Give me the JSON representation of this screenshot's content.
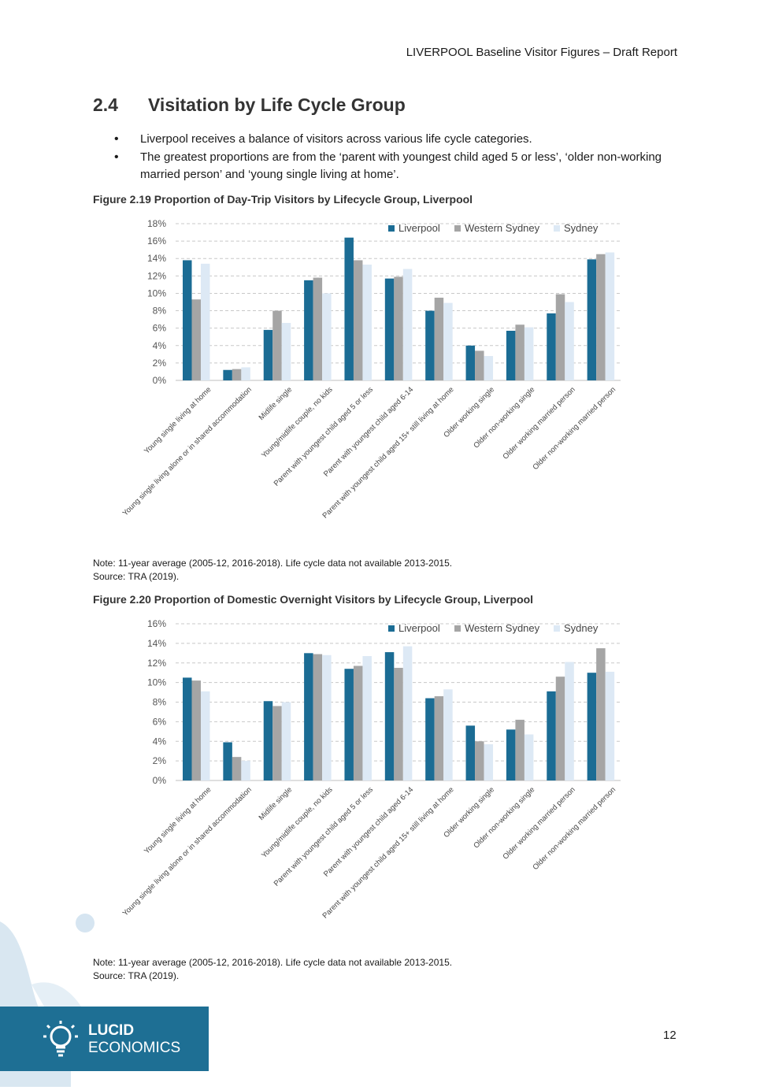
{
  "header": "LIVERPOOL Baseline Visitor Figures – Draft Report",
  "section": {
    "number": "2.4",
    "title": "Visitation by Life Cycle Group"
  },
  "bullets": [
    "Liverpool receives a balance of visitors across various life cycle categories.",
    "The greatest proportions are from the ‘parent with youngest child aged 5 or less’, ‘older non-working married person’ and ‘young single living at home’."
  ],
  "colors": {
    "liverpool": "#1b6c94",
    "western_sydney": "#a5a5a5",
    "sydney": "#dde9f5"
  },
  "figures": [
    {
      "title": "Figure 2.19 Proportion of Day-Trip Visitors by Lifecycle Group, Liverpool",
      "note": "Note: 11-year average (2005-12, 2016-2018). Life cycle data not available 2013-2015.",
      "source": "Source: TRA (2019)."
    },
    {
      "title": "Figure 2.20 Proportion of Domestic Overnight Visitors by Lifecycle Group, Liverpool",
      "note": "Note: 11-year average (2005-12, 2016-2018). Life cycle data not available 2013-2015.",
      "source": "Source: TRA (2019)."
    }
  ],
  "chart_data": [
    {
      "type": "bar",
      "title": "",
      "xlabel": "",
      "ylabel": "",
      "ylim": [
        0,
        18
      ],
      "yticks": [
        "0%",
        "2%",
        "4%",
        "6%",
        "8%",
        "10%",
        "12%",
        "14%",
        "16%",
        "18%"
      ],
      "categories": [
        "Young single living at home",
        "Young single living alone or in shared accommodation",
        "Midlife single",
        "Young/midlife couple, no kids",
        "Parent with youngest child aged 5 or less",
        "Parent with youngest child aged 6-14",
        "Parent with youngest child aged 15+ still living at home",
        "Older working single",
        "Older non-working single",
        "Older working married person",
        "Older non-working married person"
      ],
      "series": [
        {
          "name": "Liverpool",
          "values": [
            13.8,
            1.2,
            5.8,
            11.5,
            16.4,
            11.7,
            8.0,
            4.0,
            5.7,
            7.7,
            13.9
          ]
        },
        {
          "name": "Western Sydney",
          "values": [
            9.3,
            1.3,
            8.0,
            11.8,
            13.8,
            11.9,
            9.5,
            3.4,
            6.4,
            9.9,
            14.5
          ]
        },
        {
          "name": "Sydney",
          "values": [
            13.4,
            1.5,
            6.6,
            10.0,
            13.3,
            12.8,
            8.9,
            2.8,
            6.1,
            9.0,
            14.7
          ]
        }
      ],
      "grid": true,
      "legend": "top-right"
    },
    {
      "type": "bar",
      "title": "",
      "xlabel": "",
      "ylabel": "",
      "ylim": [
        0,
        16
      ],
      "yticks": [
        "0%",
        "2%",
        "4%",
        "6%",
        "8%",
        "10%",
        "12%",
        "14%",
        "16%"
      ],
      "categories": [
        "Young single living at home",
        "Young single living alone or in shared accommodation",
        "Midlife single",
        "Young/midlife couple, no kids",
        "Parent with youngest child aged 5 or less",
        "Parent with youngest child aged 6-14",
        "Parent with youngest child aged 15+ still living at home",
        "Older working single",
        "Older non-working single",
        "Older working married person",
        "Older non-working married person"
      ],
      "series": [
        {
          "name": "Liverpool",
          "values": [
            10.5,
            3.9,
            8.1,
            13.0,
            11.4,
            13.1,
            8.4,
            5.6,
            5.2,
            9.1,
            11.0
          ]
        },
        {
          "name": "Western Sydney",
          "values": [
            10.2,
            2.4,
            7.6,
            12.9,
            11.7,
            11.5,
            8.6,
            4.0,
            6.2,
            10.6,
            13.5
          ]
        },
        {
          "name": "Sydney",
          "values": [
            9.1,
            2.0,
            8.0,
            12.8,
            12.7,
            13.7,
            9.3,
            3.7,
            4.7,
            12.1,
            11.1
          ]
        }
      ],
      "grid": true,
      "legend": "top-right"
    }
  ],
  "logo": {
    "line1": "LUCID",
    "line2": "ECONOMICS"
  },
  "page_number": "12"
}
